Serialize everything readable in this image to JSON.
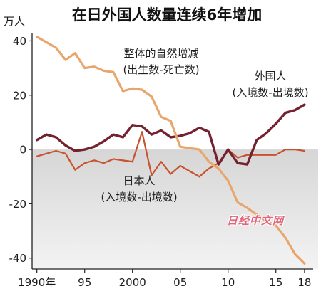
{
  "watermark": "日经中文网",
  "chart_data": {
    "type": "line",
    "title": "在日外国人数量连续6年增加",
    "ylabel": "万人",
    "xlabel": "",
    "x": [
      1990,
      1991,
      1992,
      1993,
      1994,
      1995,
      1996,
      1997,
      1998,
      1999,
      2000,
      2001,
      2002,
      2003,
      2004,
      2005,
      2006,
      2007,
      2008,
      2009,
      2010,
      2011,
      2012,
      2013,
      2014,
      2015,
      2016,
      2017,
      2018
    ],
    "x_ticks": [
      {
        "value": 1990,
        "label": "1990年"
      },
      {
        "value": 1995,
        "label": "95"
      },
      {
        "value": 2000,
        "label": "2000"
      },
      {
        "value": 2005,
        "label": "05"
      },
      {
        "value": 2010,
        "label": "10"
      },
      {
        "value": 2015,
        "label": "15"
      },
      {
        "value": 2018,
        "label": "18"
      }
    ],
    "y_ticks": [
      {
        "value": 40,
        "label": "40"
      },
      {
        "value": 20,
        "label": "20"
      },
      {
        "value": 0,
        "label": "0"
      },
      {
        "value": -20,
        "label": "-20"
      },
      {
        "value": -40,
        "label": "-40"
      }
    ],
    "xlim": [
      1989.5,
      2019.2
    ],
    "ylim": [
      -44,
      43
    ],
    "grid": false,
    "negative_region_shaded": true,
    "shade_color": "#dcdcdc",
    "series": [
      {
        "name": "整体的自然增减",
        "note": "(出生数-死亡数)",
        "color": "#e9a66c",
        "values": [
          41.5,
          39.5,
          37.5,
          33,
          35.5,
          30,
          30.5,
          29,
          28.5,
          21.5,
          22.5,
          22,
          19.5,
          12,
          10.5,
          1,
          0.5,
          0,
          -4.5,
          -7,
          -11.5,
          -19.5,
          -21.5,
          -24,
          -26.5,
          -28,
          -32.5,
          -38.5,
          -42
        ]
      },
      {
        "name": "外国人",
        "note": "(入境数-出境数)",
        "color": "#74222f",
        "values": [
          3.5,
          5.5,
          4.5,
          1.5,
          -0.5,
          0,
          1,
          3,
          5.5,
          4.5,
          9,
          8.5,
          5.5,
          7,
          4.5,
          5,
          6,
          8,
          6.5,
          -5.5,
          0,
          -5,
          -5.5,
          3.5,
          6,
          9.5,
          13.5,
          14.5,
          16.5
        ]
      },
      {
        "name": "日本人",
        "note": "(入境数-出境数)",
        "color": "#c8532c",
        "values": [
          -2.5,
          -1.5,
          -0.5,
          -1.5,
          -7.5,
          -5,
          -4,
          -5,
          -3.5,
          -4,
          -4.5,
          6.5,
          -9.5,
          -4.5,
          -9,
          -6,
          -8,
          -10,
          -7,
          -5,
          0,
          -3,
          -2,
          -2,
          -2,
          -2,
          0,
          0,
          -0.5
        ]
      }
    ]
  }
}
